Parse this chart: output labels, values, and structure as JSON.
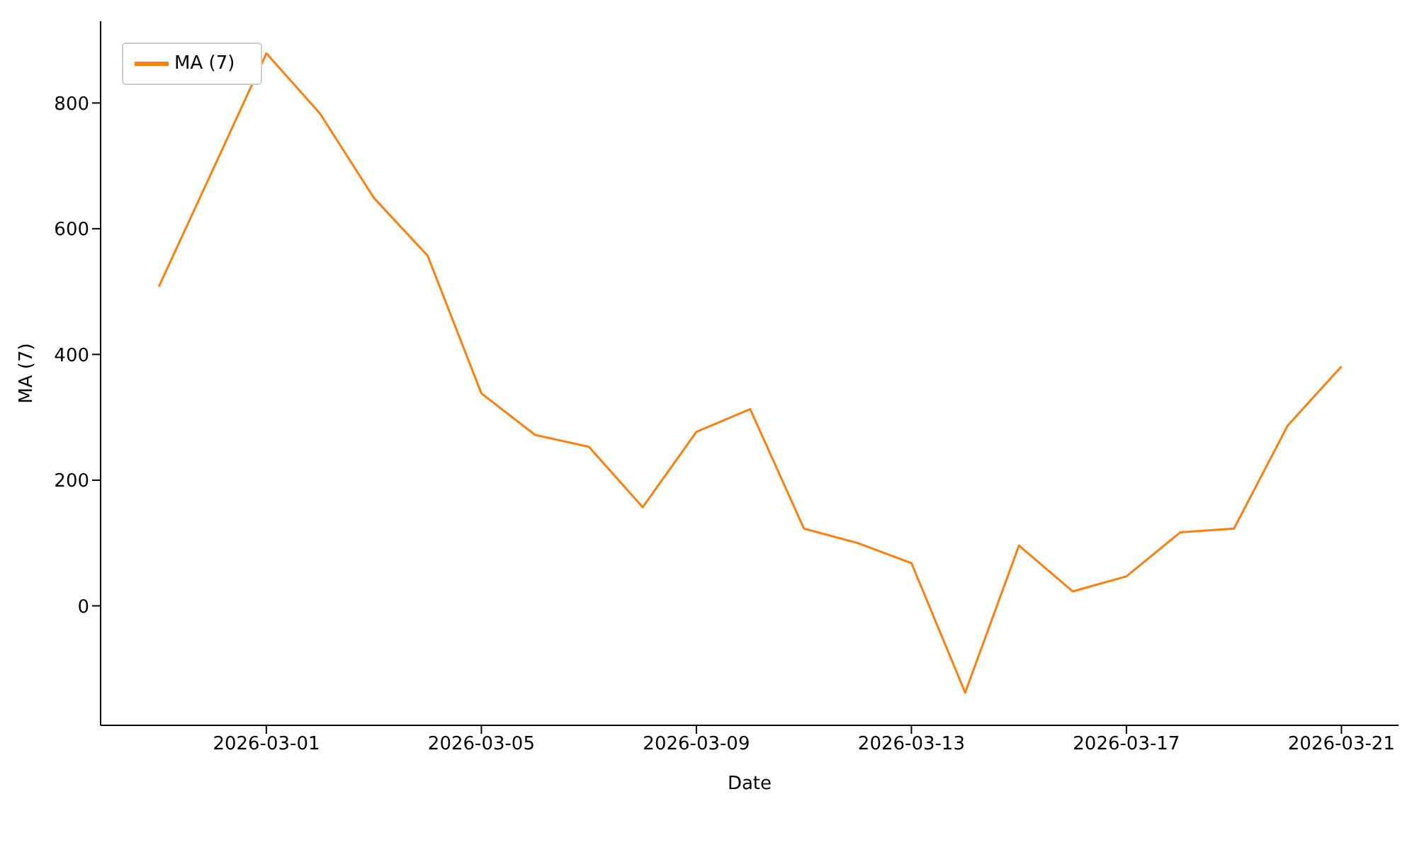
{
  "chart_data": {
    "type": "line",
    "xlabel": "Date",
    "ylabel": "MA (7)",
    "x": [
      "2026-02-27",
      "2026-02-28",
      "2026-03-01",
      "2026-03-02",
      "2026-03-03",
      "2026-03-04",
      "2026-03-05",
      "2026-03-06",
      "2026-03-07",
      "2026-03-08",
      "2026-03-09",
      "2026-03-10",
      "2026-03-11",
      "2026-03-12",
      "2026-03-13",
      "2026-03-14",
      "2026-03-15",
      "2026-03-16",
      "2026-03-17",
      "2026-03-18",
      "2026-03-19",
      "2026-03-20",
      "2026-03-21"
    ],
    "series": [
      {
        "name": "MA (7)",
        "color": "#ff7f0e",
        "values": [
          508,
          693,
          879,
          783,
          649,
          557,
          338,
          272,
          253,
          157,
          277,
          313,
          123,
          100,
          68,
          -138,
          96,
          23,
          47,
          117,
          123,
          287,
          381
        ]
      }
    ],
    "xlim": [
      "2026-02-25T22:00",
      "2026-03-22T01:30"
    ],
    "xticks": [
      "2026-03-01",
      "2026-03-05",
      "2026-03-09",
      "2026-03-13",
      "2026-03-17",
      "2026-03-21"
    ],
    "ylim": [
      -190,
      930
    ],
    "yticks": [
      0,
      200,
      400,
      600,
      800
    ],
    "grid": false,
    "legend": "top left",
    "marker": "none",
    "line_style": "solid"
  }
}
